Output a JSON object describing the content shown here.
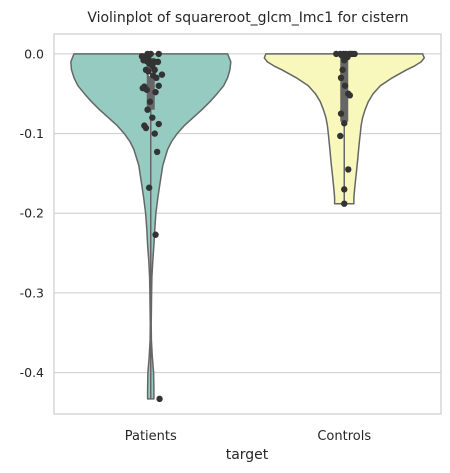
{
  "chart_data": {
    "type": "violin",
    "title": "Violinplot of squareroot_glcm_Imc1 for cistern",
    "xlabel": "target",
    "ylabel": "",
    "categories": [
      "Patients",
      "Controls"
    ],
    "ylim": [
      -0.452,
      0.025
    ],
    "yticks": [
      0.0,
      -0.1,
      -0.2,
      -0.3,
      -0.4
    ],
    "ytick_labels": [
      "0.0",
      "-0.1",
      "-0.2",
      "-0.3",
      "-0.4"
    ],
    "grid": "horizontal",
    "colors": {
      "Patients": "#96cbc2",
      "Controls": "#f8f8bd",
      "outline": "#666666",
      "points": "#333333",
      "grid": "#cccccc",
      "frame": "#cccccc"
    },
    "violins": [
      {
        "category": "Patients",
        "min": -0.433,
        "max": 0.0,
        "q1": -0.07,
        "median": -0.025,
        "q3": -0.005,
        "density": [
          [
            0.0,
            0.96
          ],
          [
            -0.01,
            1.0
          ],
          [
            -0.02,
            0.99
          ],
          [
            -0.03,
            0.96
          ],
          [
            -0.04,
            0.91
          ],
          [
            -0.05,
            0.83
          ],
          [
            -0.06,
            0.74
          ],
          [
            -0.07,
            0.64
          ],
          [
            -0.08,
            0.53
          ],
          [
            -0.09,
            0.42
          ],
          [
            -0.1,
            0.33
          ],
          [
            -0.11,
            0.26
          ],
          [
            -0.12,
            0.21
          ],
          [
            -0.14,
            0.15
          ],
          [
            -0.16,
            0.12
          ],
          [
            -0.18,
            0.09
          ],
          [
            -0.2,
            0.065
          ],
          [
            -0.22,
            0.05
          ],
          [
            -0.24,
            0.04
          ],
          [
            -0.26,
            0.025
          ],
          [
            -0.28,
            0.015
          ],
          [
            -0.3,
            0.01
          ],
          [
            -0.32,
            0.008
          ],
          [
            -0.34,
            0.006
          ],
          [
            -0.36,
            0.008
          ],
          [
            -0.38,
            0.02
          ],
          [
            -0.4,
            0.035
          ],
          [
            -0.42,
            0.04
          ],
          [
            -0.433,
            0.04
          ]
        ],
        "points": [
          [
            -0.07,
            -0.005
          ],
          [
            -0.03,
            -0.007
          ],
          [
            -0.05,
            -0.009
          ],
          [
            -0.02,
            -0.012
          ],
          [
            0.04,
            -0.01
          ],
          [
            0.02,
            -0.015
          ],
          [
            -0.09,
            -0.008
          ],
          [
            -0.06,
            -0.02
          ],
          [
            0.05,
            -0.02
          ],
          [
            0.09,
            -0.01
          ],
          [
            -0.03,
            -0.022
          ],
          [
            0.03,
            -0.027
          ],
          [
            0.07,
            -0.03
          ],
          [
            0.14,
            -0.026
          ],
          [
            0.1,
            -0.04
          ],
          [
            -0.08,
            -0.041
          ],
          [
            -0.1,
            -0.043
          ],
          [
            -0.05,
            -0.045
          ],
          [
            0.06,
            -0.048
          ],
          [
            -0.01,
            -0.06
          ],
          [
            -0.04,
            -0.07
          ],
          [
            0.02,
            -0.08
          ],
          [
            0.1,
            -0.088
          ],
          [
            -0.08,
            -0.09
          ],
          [
            -0.06,
            -0.093
          ],
          [
            0.05,
            -0.1
          ],
          [
            0.08,
            -0.123
          ],
          [
            -0.02,
            -0.168
          ],
          [
            0.06,
            -0.227
          ],
          [
            0.11,
            -0.433
          ],
          [
            0.0,
            0.0
          ],
          [
            0.05,
            -0.01
          ],
          [
            -0.04,
            0.0
          ],
          [
            0.1,
            0.0
          ],
          [
            -0.11,
            -0.003
          ]
        ]
      },
      {
        "category": "Controls",
        "min": -0.188,
        "max": 0.0,
        "q1": -0.085,
        "median": -0.005,
        "q3": -0.002,
        "density": [
          [
            0.0,
            0.98
          ],
          [
            -0.005,
            1.0
          ],
          [
            -0.01,
            0.96
          ],
          [
            -0.015,
            0.88
          ],
          [
            -0.02,
            0.78
          ],
          [
            -0.03,
            0.6
          ],
          [
            -0.04,
            0.45
          ],
          [
            -0.05,
            0.36
          ],
          [
            -0.06,
            0.3
          ],
          [
            -0.07,
            0.26
          ],
          [
            -0.08,
            0.23
          ],
          [
            -0.09,
            0.21
          ],
          [
            -0.1,
            0.2
          ],
          [
            -0.11,
            0.19
          ],
          [
            -0.12,
            0.18
          ],
          [
            -0.13,
            0.17
          ],
          [
            -0.14,
            0.16
          ],
          [
            -0.15,
            0.15
          ],
          [
            -0.16,
            0.14
          ],
          [
            -0.17,
            0.13
          ],
          [
            -0.18,
            0.12
          ],
          [
            -0.188,
            0.12
          ]
        ],
        "points": [
          [
            -0.1,
            0.0
          ],
          [
            -0.05,
            0.0
          ],
          [
            -0.01,
            0.0
          ],
          [
            0.02,
            0.0
          ],
          [
            0.06,
            0.0
          ],
          [
            0.1,
            0.0
          ],
          [
            0.13,
            0.0
          ],
          [
            -0.03,
            -0.002
          ],
          [
            0.04,
            -0.004
          ],
          [
            0.0,
            -0.008
          ],
          [
            -0.02,
            -0.02
          ],
          [
            -0.04,
            -0.03
          ],
          [
            0.01,
            -0.04
          ],
          [
            0.05,
            -0.05
          ],
          [
            0.07,
            -0.052
          ],
          [
            -0.04,
            -0.075
          ],
          [
            0.0,
            -0.087
          ],
          [
            -0.05,
            -0.103
          ],
          [
            0.05,
            -0.145
          ],
          [
            0.0,
            -0.17
          ],
          [
            0.0,
            -0.188
          ],
          [
            0.08,
            -0.0
          ]
        ]
      }
    ]
  }
}
